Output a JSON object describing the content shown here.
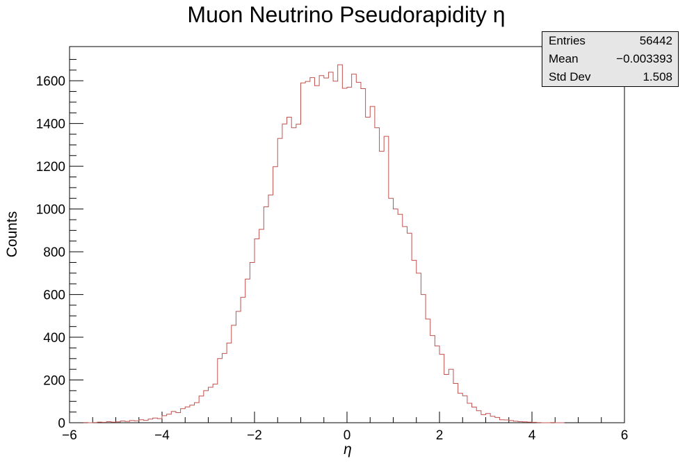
{
  "chart_data": {
    "type": "histogram",
    "title": "Muon Neutrino Pseudorapidity η",
    "xlabel": "η",
    "ylabel": "Counts",
    "xlim": [
      -6,
      6
    ],
    "ylim": [
      0,
      1760
    ],
    "x_ticks": [
      "−6",
      "−4",
      "−2",
      "0",
      "2",
      "4",
      "6"
    ],
    "y_ticks": [
      "0",
      "200",
      "400",
      "600",
      "800",
      "1000",
      "1200",
      "1400",
      "1600"
    ],
    "line_color": "#c0504d",
    "bin_start": -5.7,
    "bin_width": 0.1,
    "counts": [
      1,
      0,
      1,
      3,
      2,
      5,
      3,
      4,
      8,
      6,
      10,
      9,
      14,
      11,
      17,
      22,
      19,
      33,
      40,
      53,
      47,
      66,
      74,
      82,
      94,
      125,
      150,
      166,
      181,
      300,
      324,
      373,
      456,
      521,
      587,
      672,
      750,
      860,
      905,
      1010,
      1066,
      1198,
      1330,
      1398,
      1430,
      1380,
      1397,
      1590,
      1597,
      1615,
      1577,
      1624,
      1613,
      1640,
      1598,
      1675,
      1565,
      1570,
      1631,
      1593,
      1563,
      1430,
      1480,
      1380,
      1270,
      1340,
      1050,
      1000,
      975,
      918,
      887,
      760,
      700,
      600,
      485,
      408,
      359,
      320,
      226,
      250,
      184,
      138,
      126,
      91,
      73,
      56,
      38,
      43,
      30,
      25,
      14,
      13,
      10,
      7,
      5,
      4,
      3,
      2,
      1,
      0,
      0,
      1,
      0,
      0
    ],
    "grid": false,
    "legend": "none"
  },
  "stats_box": {
    "entries_label": "Entries",
    "entries_value": "56442",
    "mean_label": "Mean",
    "mean_value": "−0.003393",
    "std_label": "Std Dev",
    "std_value": "1.508"
  }
}
